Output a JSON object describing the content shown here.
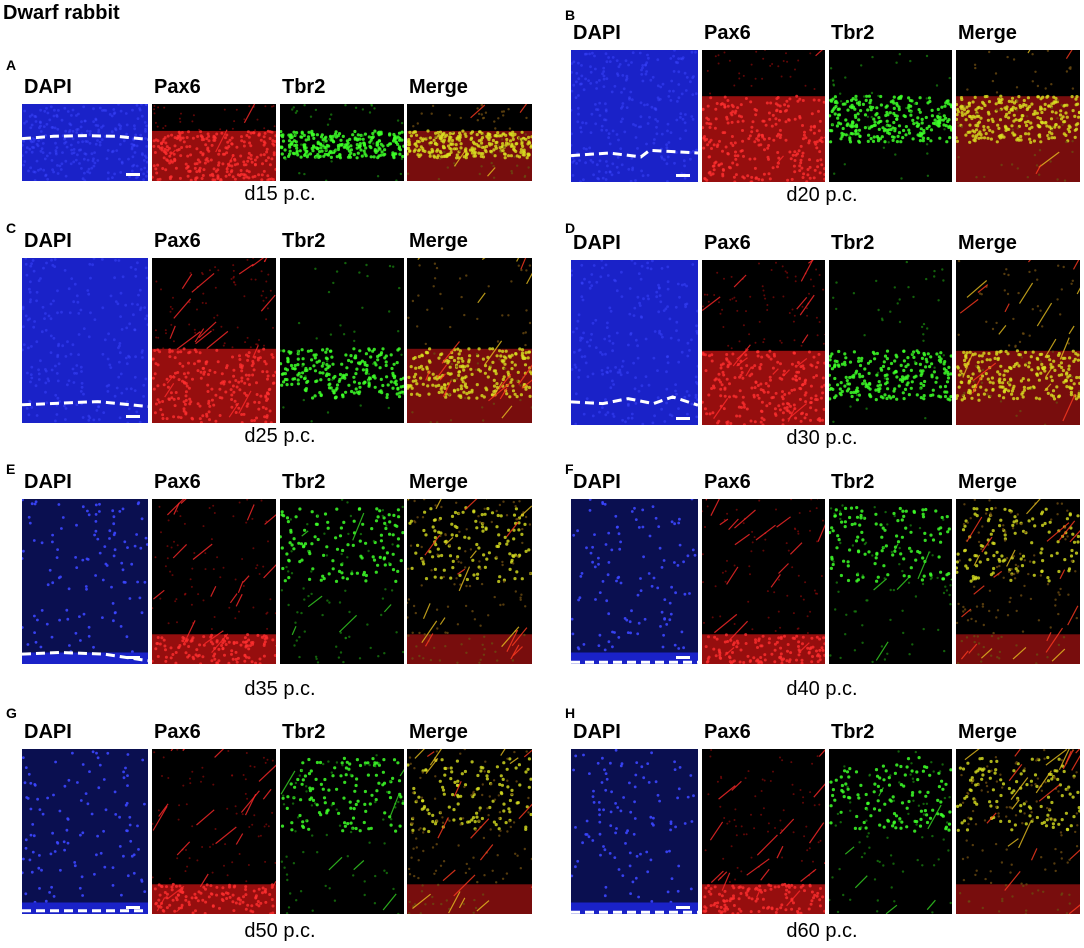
{
  "title": "Dwarf rabbit",
  "channels": [
    "DAPI",
    "Pax6",
    "Tbr2",
    "Merge"
  ],
  "channel_colors": {
    "DAPI": "#1f2bd6",
    "Pax6": "#e01818",
    "Tbr2": "#2fc21a",
    "Merge": "#d8b21c"
  },
  "panels": [
    {
      "label": "A",
      "caption": "d15 p.c."
    },
    {
      "label": "B",
      "caption": "d20 p.c."
    },
    {
      "label": "C",
      "caption": "d25 p.c."
    },
    {
      "label": "D",
      "caption": "d30 p.c."
    },
    {
      "label": "E",
      "caption": "d35 p.c."
    },
    {
      "label": "F",
      "caption": "d40 p.c."
    },
    {
      "label": "G",
      "caption": "d50 p.c."
    },
    {
      "label": "H",
      "caption": "d60 p.c."
    }
  ]
}
